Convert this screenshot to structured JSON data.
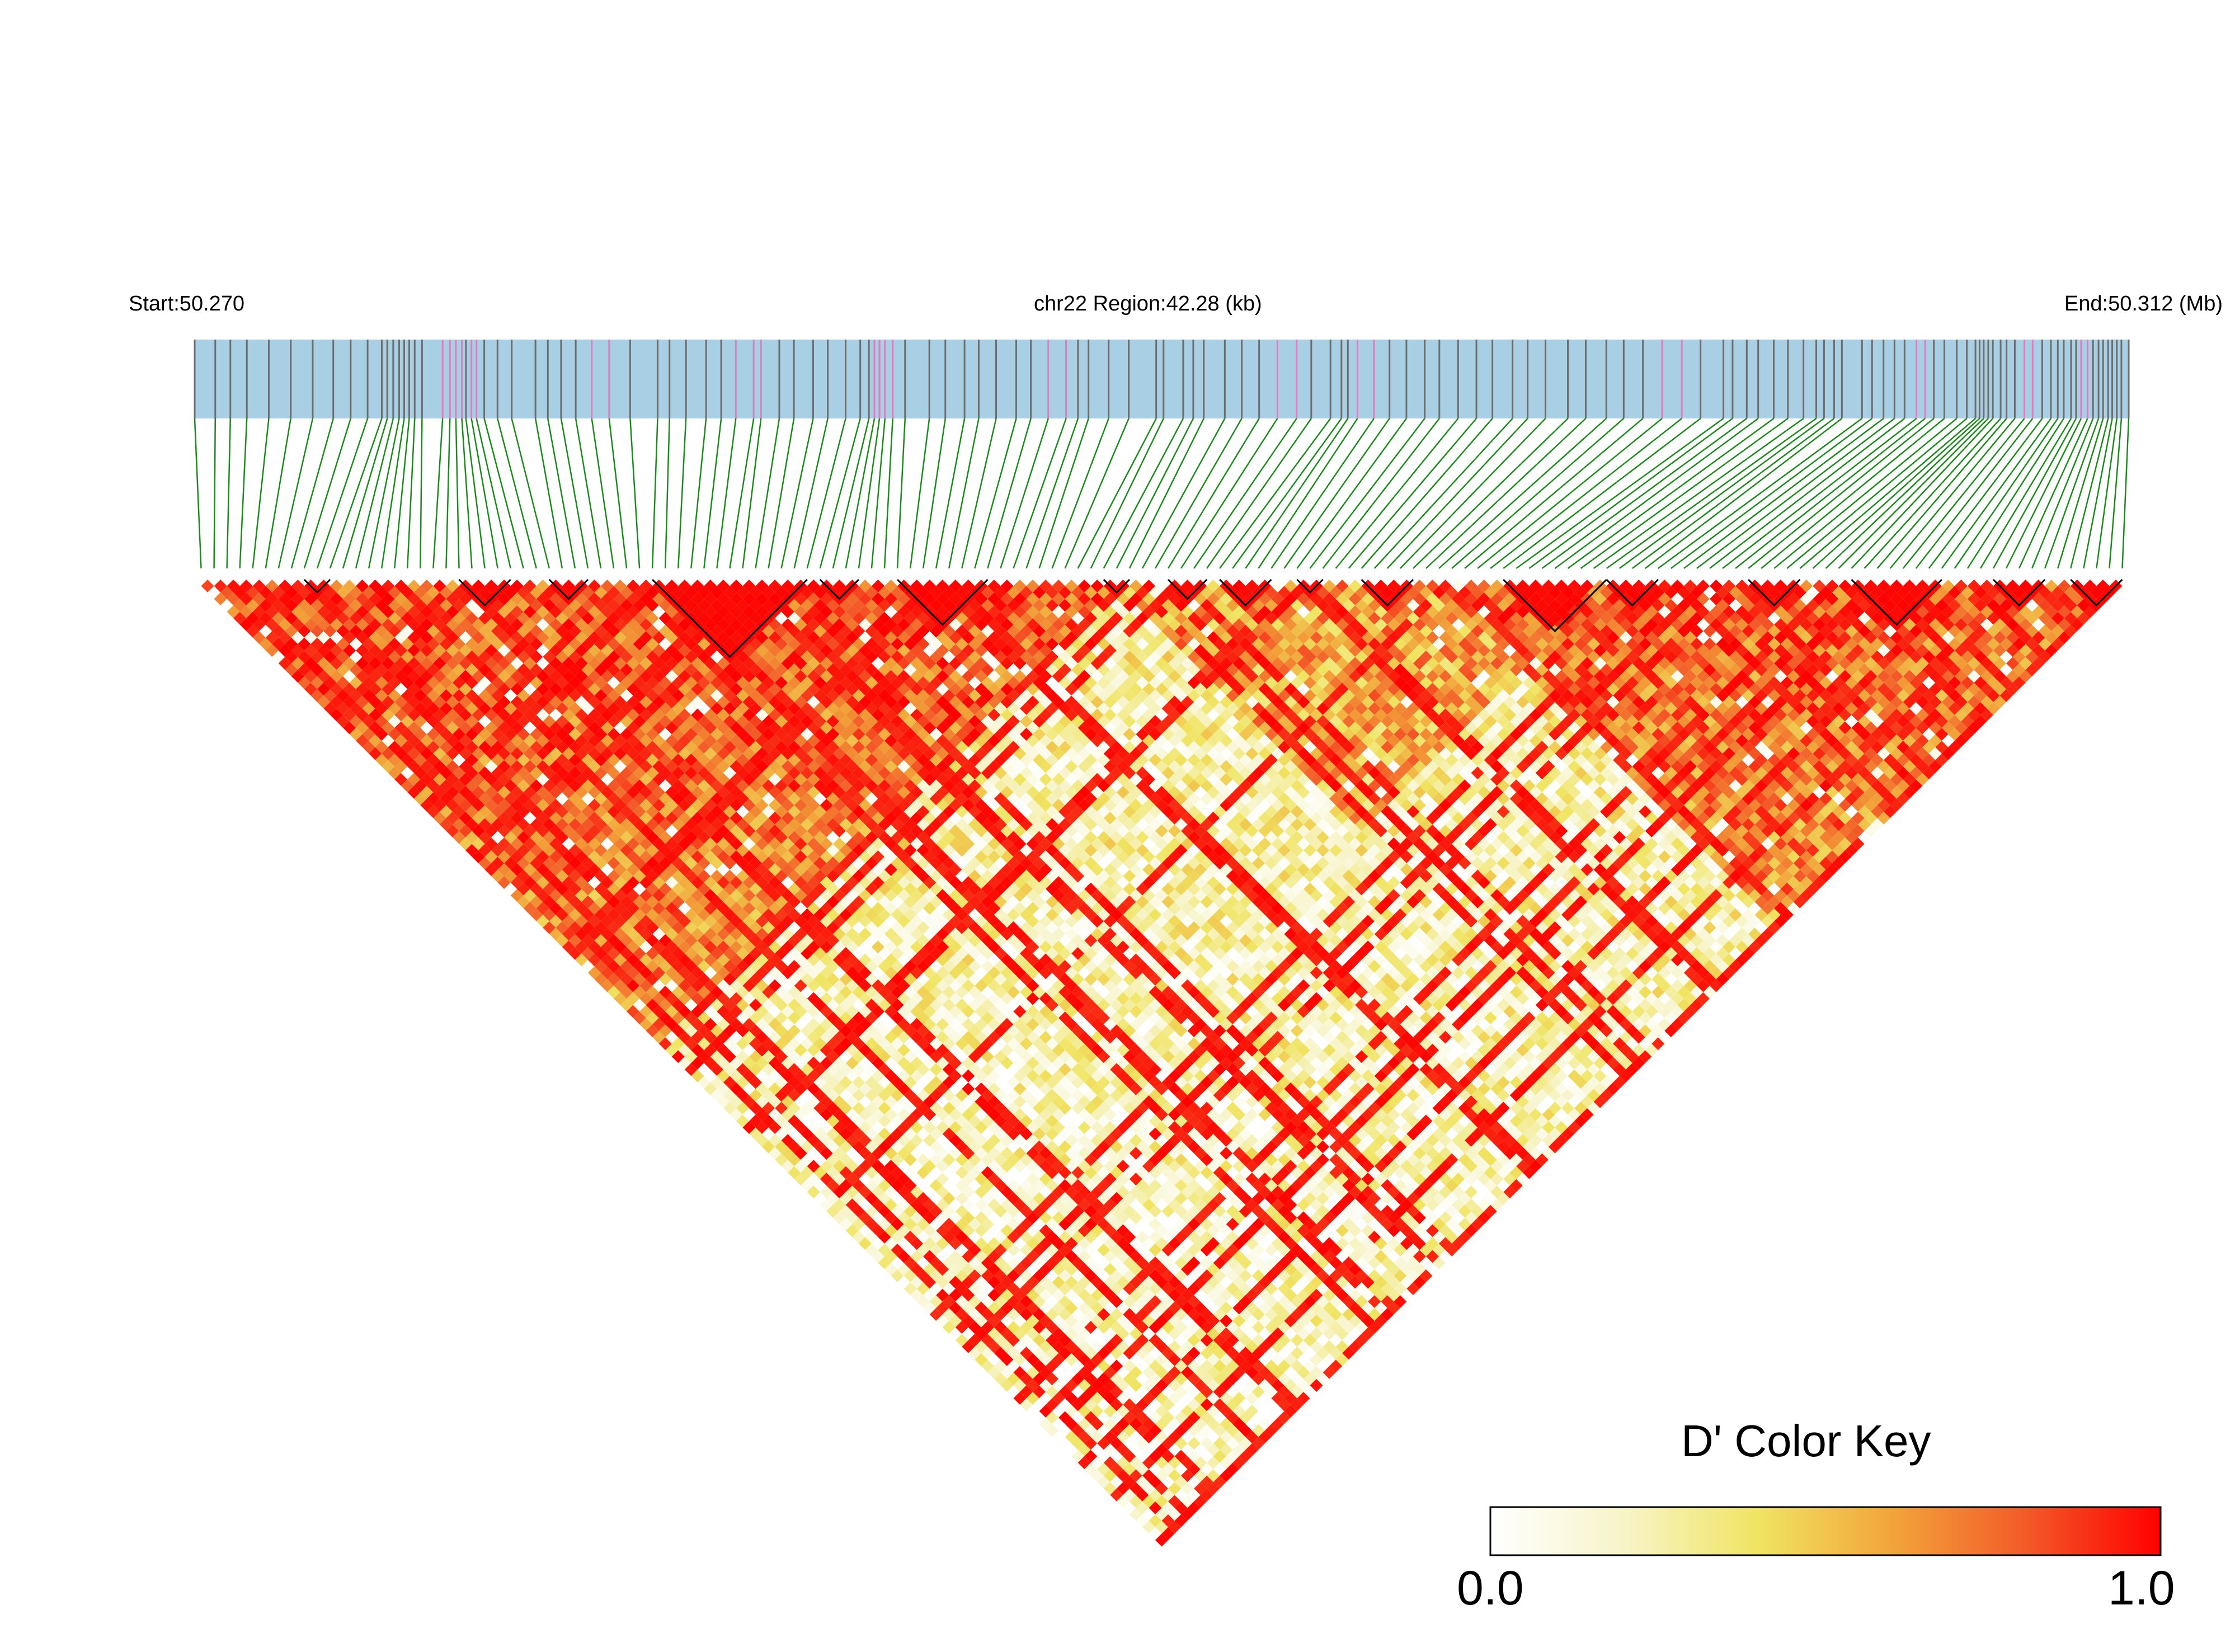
{
  "header": {
    "start_label": "Start:50.270",
    "region_label": "chr22 Region:42.28 (kb)",
    "end_label": "End:50.312 (Mb)"
  },
  "legend": {
    "title": "D' Color Key",
    "min_label": "0.0",
    "max_label": "1.0",
    "gradient": [
      "#ffffff",
      "#f7f4c8",
      "#f0e461",
      "#f2a43a",
      "#f35a28",
      "#ff0000"
    ]
  },
  "colors": {
    "track_fill": "#a8cfe3",
    "snp_line_gray": "#6d6d6d",
    "snp_line_pink": "#e07cc0",
    "connector_green": "#1b8a1b",
    "block_outline": "#000000"
  },
  "chart_data": {
    "type": "heatmap",
    "title": "chr22 Region:42.28 (kb)",
    "measure": "D'",
    "value_range": [
      0,
      1
    ],
    "region_start_mb": 50.27,
    "region_end_mb": 50.312,
    "n_snps": 150,
    "snp_positions_kb_in_region": [
      0.0,
      0.45,
      0.78,
      1.14,
      1.62,
      2.1,
      2.58,
      3.03,
      3.41,
      3.78,
      4.09,
      4.21,
      4.34,
      4.47,
      4.58,
      4.69,
      4.81,
      4.97,
      5.42,
      5.58,
      5.71,
      5.84,
      5.93,
      6.05,
      6.16,
      6.33,
      6.62,
      6.93,
      7.45,
      7.72,
      8.01,
      8.33,
      8.68,
      9.06,
      9.52,
      10.12,
      10.38,
      10.74,
      11.18,
      11.51,
      11.83,
      12.22,
      12.38,
      12.78,
      13.1,
      13.52,
      13.84,
      14.23,
      14.55,
      14.74,
      14.86,
      14.97,
      15.09,
      15.26,
      15.53,
      16.06,
      16.41,
      16.83,
      17.14,
      17.52,
      17.96,
      18.28,
      18.66,
      19.05,
      19.31,
      19.54,
      19.98,
      20.42,
      21.02,
      21.18,
      21.61,
      21.83,
      22.06,
      22.52,
      22.89,
      23.27,
      23.67,
      24.09,
      24.41,
      24.83,
      25.07,
      25.21,
      25.42,
      25.78,
      26.12,
      26.49,
      26.89,
      27.21,
      27.62,
      28.02,
      28.37,
      28.81,
      29.14,
      29.53,
      30.02,
      30.41,
      30.86,
      31.24,
      31.66,
      32.08,
      32.51,
      32.92,
      33.42,
      33.62,
      33.93,
      34.18,
      34.52,
      34.83,
      35.17,
      35.45,
      35.62,
      35.84,
      36.01,
      36.45,
      36.67,
      36.92,
      37.16,
      37.38,
      37.64,
      37.83,
      38.02,
      38.25,
      38.52,
      38.74,
      38.93,
      39.02,
      39.11,
      39.21,
      39.31,
      39.48,
      39.61,
      39.79,
      40.0,
      40.18,
      40.39,
      40.58,
      40.73,
      40.86,
      41.02,
      41.13,
      41.24,
      41.38,
      41.5,
      41.62,
      41.72,
      41.83,
      41.92,
      42.02,
      42.12,
      42.28
    ],
    "pink_snp_indices": [
      18,
      19,
      20,
      21,
      23,
      24,
      32,
      33,
      40,
      41,
      42,
      50,
      51,
      52,
      53,
      62,
      63,
      76,
      77,
      82,
      83,
      99,
      100,
      118,
      119,
      132,
      133,
      140,
      141
    ],
    "ld_blocks_by_snp_index": [
      [
        8,
        10
      ],
      [
        20,
        24
      ],
      [
        27,
        30
      ],
      [
        35,
        47
      ],
      [
        48,
        51
      ],
      [
        54,
        61
      ],
      [
        70,
        72
      ],
      [
        75,
        78
      ],
      [
        79,
        83
      ],
      [
        85,
        87
      ],
      [
        90,
        94
      ],
      [
        101,
        109
      ],
      [
        109,
        113
      ],
      [
        120,
        124
      ],
      [
        128,
        135
      ],
      [
        139,
        143
      ],
      [
        145,
        149
      ]
    ],
    "notes_generation": "matrix of pairwise D' values, high near diagonal and inside blocks"
  }
}
